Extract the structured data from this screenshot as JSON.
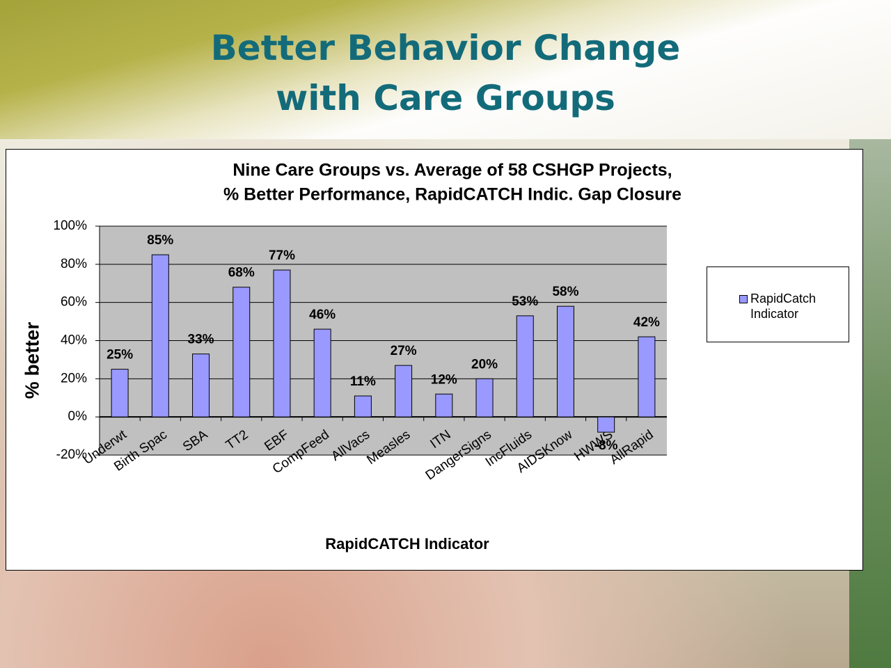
{
  "slide_title": [
    "Better Behavior Change",
    "with Care Groups"
  ],
  "chart_data": {
    "type": "bar",
    "title": [
      "Nine Care Groups vs. Average of 58 CSHGP Projects,",
      "% Better Performance, RapidCATCH Indic. Gap Closure"
    ],
    "x_label": "RapidCATCH Indicator",
    "y_label": "% better",
    "categories": [
      "Underwt",
      "Birth Spac",
      "SBA",
      "TT2",
      "EBF",
      "CompFeed",
      "AllVacs",
      "Measles",
      "ITN",
      "DangerSigns",
      "IncFluids",
      "AIDSKnow",
      "HWWS",
      "AllRapid"
    ],
    "series": [
      {
        "name": "RapidCatch Indicator",
        "color": "#9999ff",
        "values": [
          25,
          85,
          33,
          68,
          77,
          46,
          11,
          27,
          12,
          20,
          53,
          58,
          -8,
          42
        ],
        "value_labels": [
          "25%",
          "85%",
          "33%",
          "68%",
          "77%",
          "46%",
          "11%",
          "27%",
          "12%",
          "20%",
          "53%",
          "58%",
          "-8%",
          "42%"
        ]
      }
    ],
    "ylim": [
      -20,
      100
    ],
    "yticks": [
      {
        "value": -20,
        "label": "-20%"
      },
      {
        "value": 0,
        "label": "0%"
      },
      {
        "value": 20,
        "label": "20%"
      },
      {
        "value": 40,
        "label": "40%"
      },
      {
        "value": 60,
        "label": "60%"
      },
      {
        "value": 80,
        "label": "80%"
      },
      {
        "value": 100,
        "label": "100%"
      }
    ],
    "grid": true,
    "legend": "right"
  }
}
